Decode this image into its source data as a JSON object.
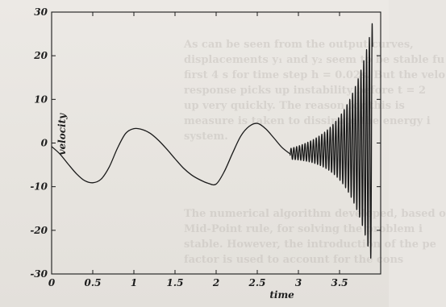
{
  "chart_data": {
    "type": "line",
    "title": "",
    "xlabel": "time",
    "ylabel": "velocity",
    "xlim": [
      0,
      4
    ],
    "ylim": [
      -30,
      30
    ],
    "x_ticks": [
      "0",
      "0.5",
      "1",
      "1.5",
      "2",
      "2.5",
      "3",
      "3.5"
    ],
    "y_ticks": [
      "-30",
      "-20",
      "-10",
      "0",
      "10",
      "20",
      "30"
    ],
    "grid": false,
    "legend": "none",
    "series": [
      {
        "x": [
          0,
          0.1,
          0.2,
          0.3,
          0.4,
          0.5,
          0.6,
          0.7,
          0.8,
          0.9,
          1.0,
          1.1,
          1.2,
          1.3,
          1.4,
          1.5,
          1.6,
          1.7,
          1.8,
          1.9,
          2.0,
          2.1,
          2.2,
          2.3,
          2.4,
          2.5,
          2.6,
          2.7,
          2.8,
          2.9
        ],
        "values": [
          -0.8,
          -2.5,
          -4.8,
          -7.0,
          -8.6,
          -9.1,
          -8.3,
          -5.5,
          -1.2,
          2.2,
          3.3,
          3.1,
          2.2,
          0.6,
          -1.4,
          -3.6,
          -5.7,
          -7.3,
          -8.4,
          -9.2,
          -9.4,
          -6.5,
          -2.3,
          1.6,
          3.8,
          4.5,
          3.3,
          1.2,
          -1.0,
          -2.5
        ]
      }
    ],
    "oscillation_region": {
      "x_start": 2.8,
      "x_end": 3.9,
      "envelope_start": 1.0,
      "envelope_end": 28
    },
    "line_color": "#1a1a1a"
  },
  "background_text": {
    "paragraph1": [
      "As can be seen from the output curves,",
      "displacements y₁ and y₂ seem to be stable fu",
      "first 4 s for time step h = 0.02s. But the velo",
      "response picks up instability before t = 2",
      "up very quickly. The reason for this is",
      "measure is taken to dissipate the energy i",
      "system."
    ],
    "paragraph2": [
      "The numerical algorithm developed, based o",
      "Mid-Point rule, for solving the problem i",
      "stable. However, the introduction of the pe",
      "factor is used to account for the cons"
    ]
  }
}
